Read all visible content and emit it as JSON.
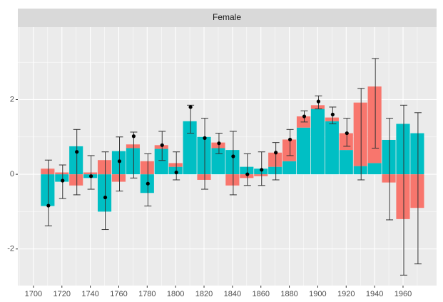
{
  "chart_data": {
    "type": "bar",
    "facet": "Female",
    "x": [
      1710,
      1720,
      1730,
      1740,
      1750,
      1760,
      1770,
      1780,
      1790,
      1800,
      1810,
      1820,
      1830,
      1840,
      1850,
      1860,
      1870,
      1880,
      1890,
      1900,
      1910,
      1920,
      1930,
      1940,
      1950,
      1960,
      1970
    ],
    "series": [
      {
        "color": "#F8766D",
        "values": [
          0.15,
          0.05,
          -0.3,
          0.05,
          0.38,
          -0.2,
          0.1,
          0.35,
          0.1,
          0.1,
          0,
          -0.15,
          0.15,
          -0.3,
          -0.1,
          -0.05,
          0.38,
          0.58,
          0.3,
          0.1,
          0.1,
          0.45,
          1.7,
          2.05,
          -0.22,
          -1.2,
          -0.9
        ]
      },
      {
        "color": "#00BFC4",
        "values": [
          -0.85,
          -0.2,
          0.75,
          -0.1,
          -1.0,
          0.62,
          0.7,
          -0.5,
          0.68,
          0.2,
          1.42,
          1.0,
          0.7,
          0.65,
          0.2,
          0.15,
          0.2,
          0.35,
          1.25,
          1.75,
          1.42,
          0.65,
          0.22,
          0.3,
          0.92,
          1.35,
          1.1
        ]
      }
    ],
    "points": {
      "color": "#000000",
      "values": [
        -0.84,
        -0.17,
        0.6,
        -0.05,
        -0.62,
        0.35,
        1.02,
        -0.25,
        0.78,
        0.05,
        1.8,
        0.97,
        0.83,
        0.48,
        0.0,
        0.12,
        0.58,
        0.93,
        1.55,
        1.95,
        1.6,
        1.1,
        null,
        null,
        null,
        null,
        null
      ]
    },
    "errorbars": {
      "color": "#333333",
      "lower": [
        -1.38,
        -0.65,
        -0.55,
        -0.4,
        -1.48,
        -0.45,
        -0.1,
        -0.85,
        0.37,
        -0.15,
        1.1,
        -0.4,
        0.55,
        -0.55,
        -0.3,
        -0.3,
        -0.15,
        0.5,
        1.4,
        1.75,
        1.35,
        0.75,
        -0.15,
        0.7,
        -1.22,
        -2.7,
        -2.4
      ],
      "upper": [
        0.38,
        0.25,
        1.2,
        0.5,
        0.6,
        1.0,
        1.13,
        0.55,
        1.15,
        0.6,
        1.85,
        1.5,
        1.1,
        1.15,
        0.55,
        0.6,
        0.85,
        1.2,
        1.7,
        2.1,
        1.8,
        1.5,
        2.3,
        3.1,
        1.5,
        1.85,
        1.65
      ]
    },
    "xlim": [
      1689,
      1983.6
    ],
    "ylim": [
      -2.98,
      3.94
    ],
    "xticks": [
      1700,
      1720,
      1740,
      1760,
      1780,
      1800,
      1820,
      1840,
      1860,
      1880,
      1900,
      1920,
      1940,
      1960
    ],
    "xminor": [
      1690,
      1710,
      1730,
      1750,
      1770,
      1790,
      1810,
      1830,
      1850,
      1870,
      1890,
      1910,
      1930,
      1950,
      1970
    ],
    "yticks": [
      -2,
      0,
      2
    ],
    "yminor": [
      -1,
      1,
      3
    ],
    "grid": true
  }
}
